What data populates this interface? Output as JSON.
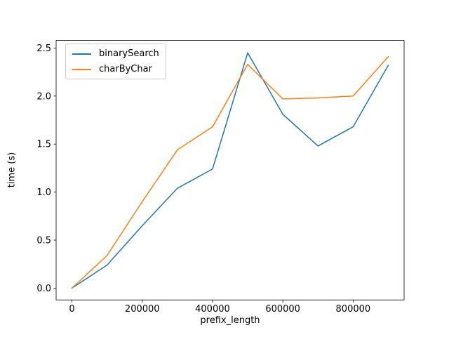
{
  "chart_data": {
    "type": "line",
    "title": "",
    "xlabel": "prefix_length",
    "ylabel": "time (s)",
    "x": [
      0,
      100000,
      200000,
      300000,
      400000,
      500000,
      600000,
      700000,
      800000,
      900000
    ],
    "series": [
      {
        "name": "binarySearch",
        "color": "#1f77b4",
        "values": [
          0.0,
          0.24,
          0.65,
          1.04,
          1.24,
          2.45,
          1.81,
          1.48,
          1.68,
          2.32
        ]
      },
      {
        "name": "charByChar",
        "color": "#ff7f0e",
        "values": [
          0.0,
          0.34,
          0.9,
          1.44,
          1.68,
          2.33,
          1.97,
          1.98,
          2.0,
          2.41
        ]
      }
    ],
    "xlim": [
      -45000,
      945000
    ],
    "ylim": [
      -0.123,
      2.579
    ],
    "xticks": {
      "values": [
        0,
        200000,
        400000,
        600000,
        800000
      ],
      "labels": [
        "0",
        "200000",
        "400000",
        "600000",
        "800000"
      ]
    },
    "yticks": {
      "values": [
        0.0,
        0.5,
        1.0,
        1.5,
        2.0,
        2.5
      ],
      "labels": [
        "0.0",
        "0.5",
        "1.0",
        "1.5",
        "2.0",
        "2.5"
      ]
    },
    "grid": false,
    "legend": {
      "position": "upper left"
    },
    "line_width": 1.5,
    "frame_color": "#000000"
  }
}
